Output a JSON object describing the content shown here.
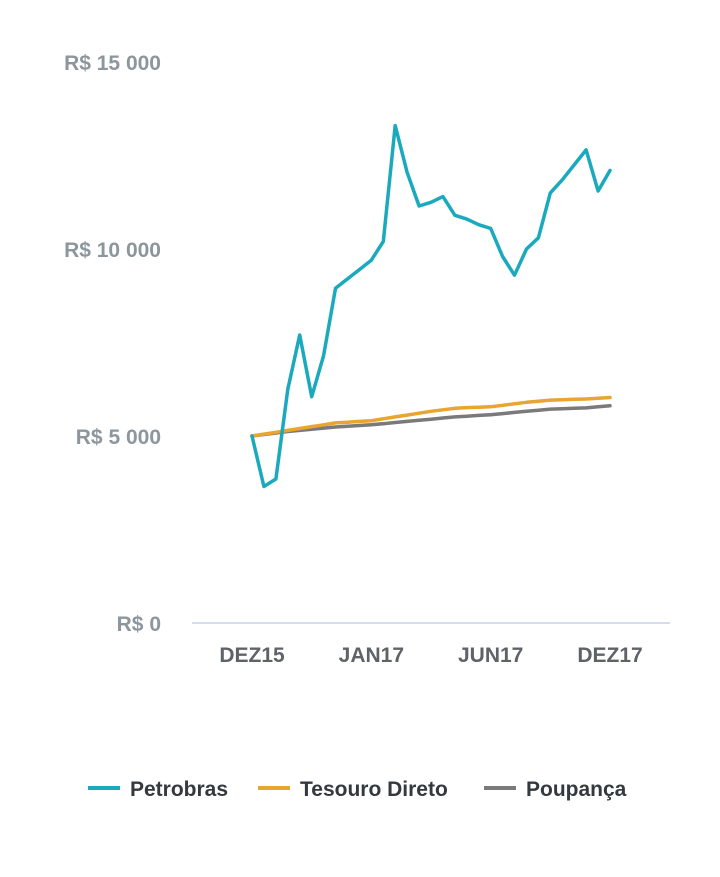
{
  "chart_data": {
    "type": "line",
    "title": "",
    "xlabel": "",
    "ylabel": "",
    "ylim": [
      0,
      15000
    ],
    "y_ticks": [
      "R$ 0",
      "R$ 5 000",
      "R$ 10 000",
      "R$ 15 000"
    ],
    "y_tick_values": [
      0,
      5000,
      10000,
      15000
    ],
    "x_ticks": [
      "DEZ15",
      "JAN17",
      "JUN17",
      "DEZ17"
    ],
    "x_tick_months": [
      0,
      10,
      20,
      30
    ],
    "grid": false,
    "legend_position": "bottom",
    "x": [
      0,
      1,
      2,
      3,
      4,
      5,
      6,
      7,
      8,
      9,
      10,
      11,
      12,
      13,
      14,
      15,
      16,
      17,
      18,
      19,
      20,
      21,
      22,
      23,
      24,
      25,
      26,
      27,
      28,
      29,
      30
    ],
    "series": [
      {
        "name": "Petrobras",
        "color": "#1ba9bd",
        "values": [
          5000,
          3650,
          3850,
          6250,
          7700,
          6050,
          7150,
          8950,
          9200,
          9450,
          9700,
          10200,
          13300,
          12050,
          11150,
          11250,
          11400,
          10900,
          10800,
          10650,
          10550,
          9800,
          9300,
          10000,
          10300,
          11500,
          11850,
          12250,
          12650,
          11550,
          12100
        ]
      },
      {
        "name": "Tesouro Direto",
        "color": "#e8a530",
        "values": [
          5000,
          5050,
          5100,
          5150,
          5200,
          5250,
          5300,
          5350,
          5370,
          5390,
          5410,
          5460,
          5510,
          5560,
          5610,
          5660,
          5700,
          5740,
          5760,
          5770,
          5780,
          5820,
          5860,
          5900,
          5930,
          5960,
          5970,
          5980,
          5990,
          6010,
          6030
        ]
      },
      {
        "name": "Poupança",
        "color": "#7a7a7a",
        "values": [
          5000,
          5040,
          5080,
          5120,
          5150,
          5180,
          5210,
          5240,
          5260,
          5280,
          5300,
          5330,
          5360,
          5390,
          5420,
          5450,
          5480,
          5510,
          5530,
          5550,
          5570,
          5600,
          5630,
          5660,
          5690,
          5720,
          5730,
          5740,
          5750,
          5780,
          5810
        ]
      }
    ]
  }
}
